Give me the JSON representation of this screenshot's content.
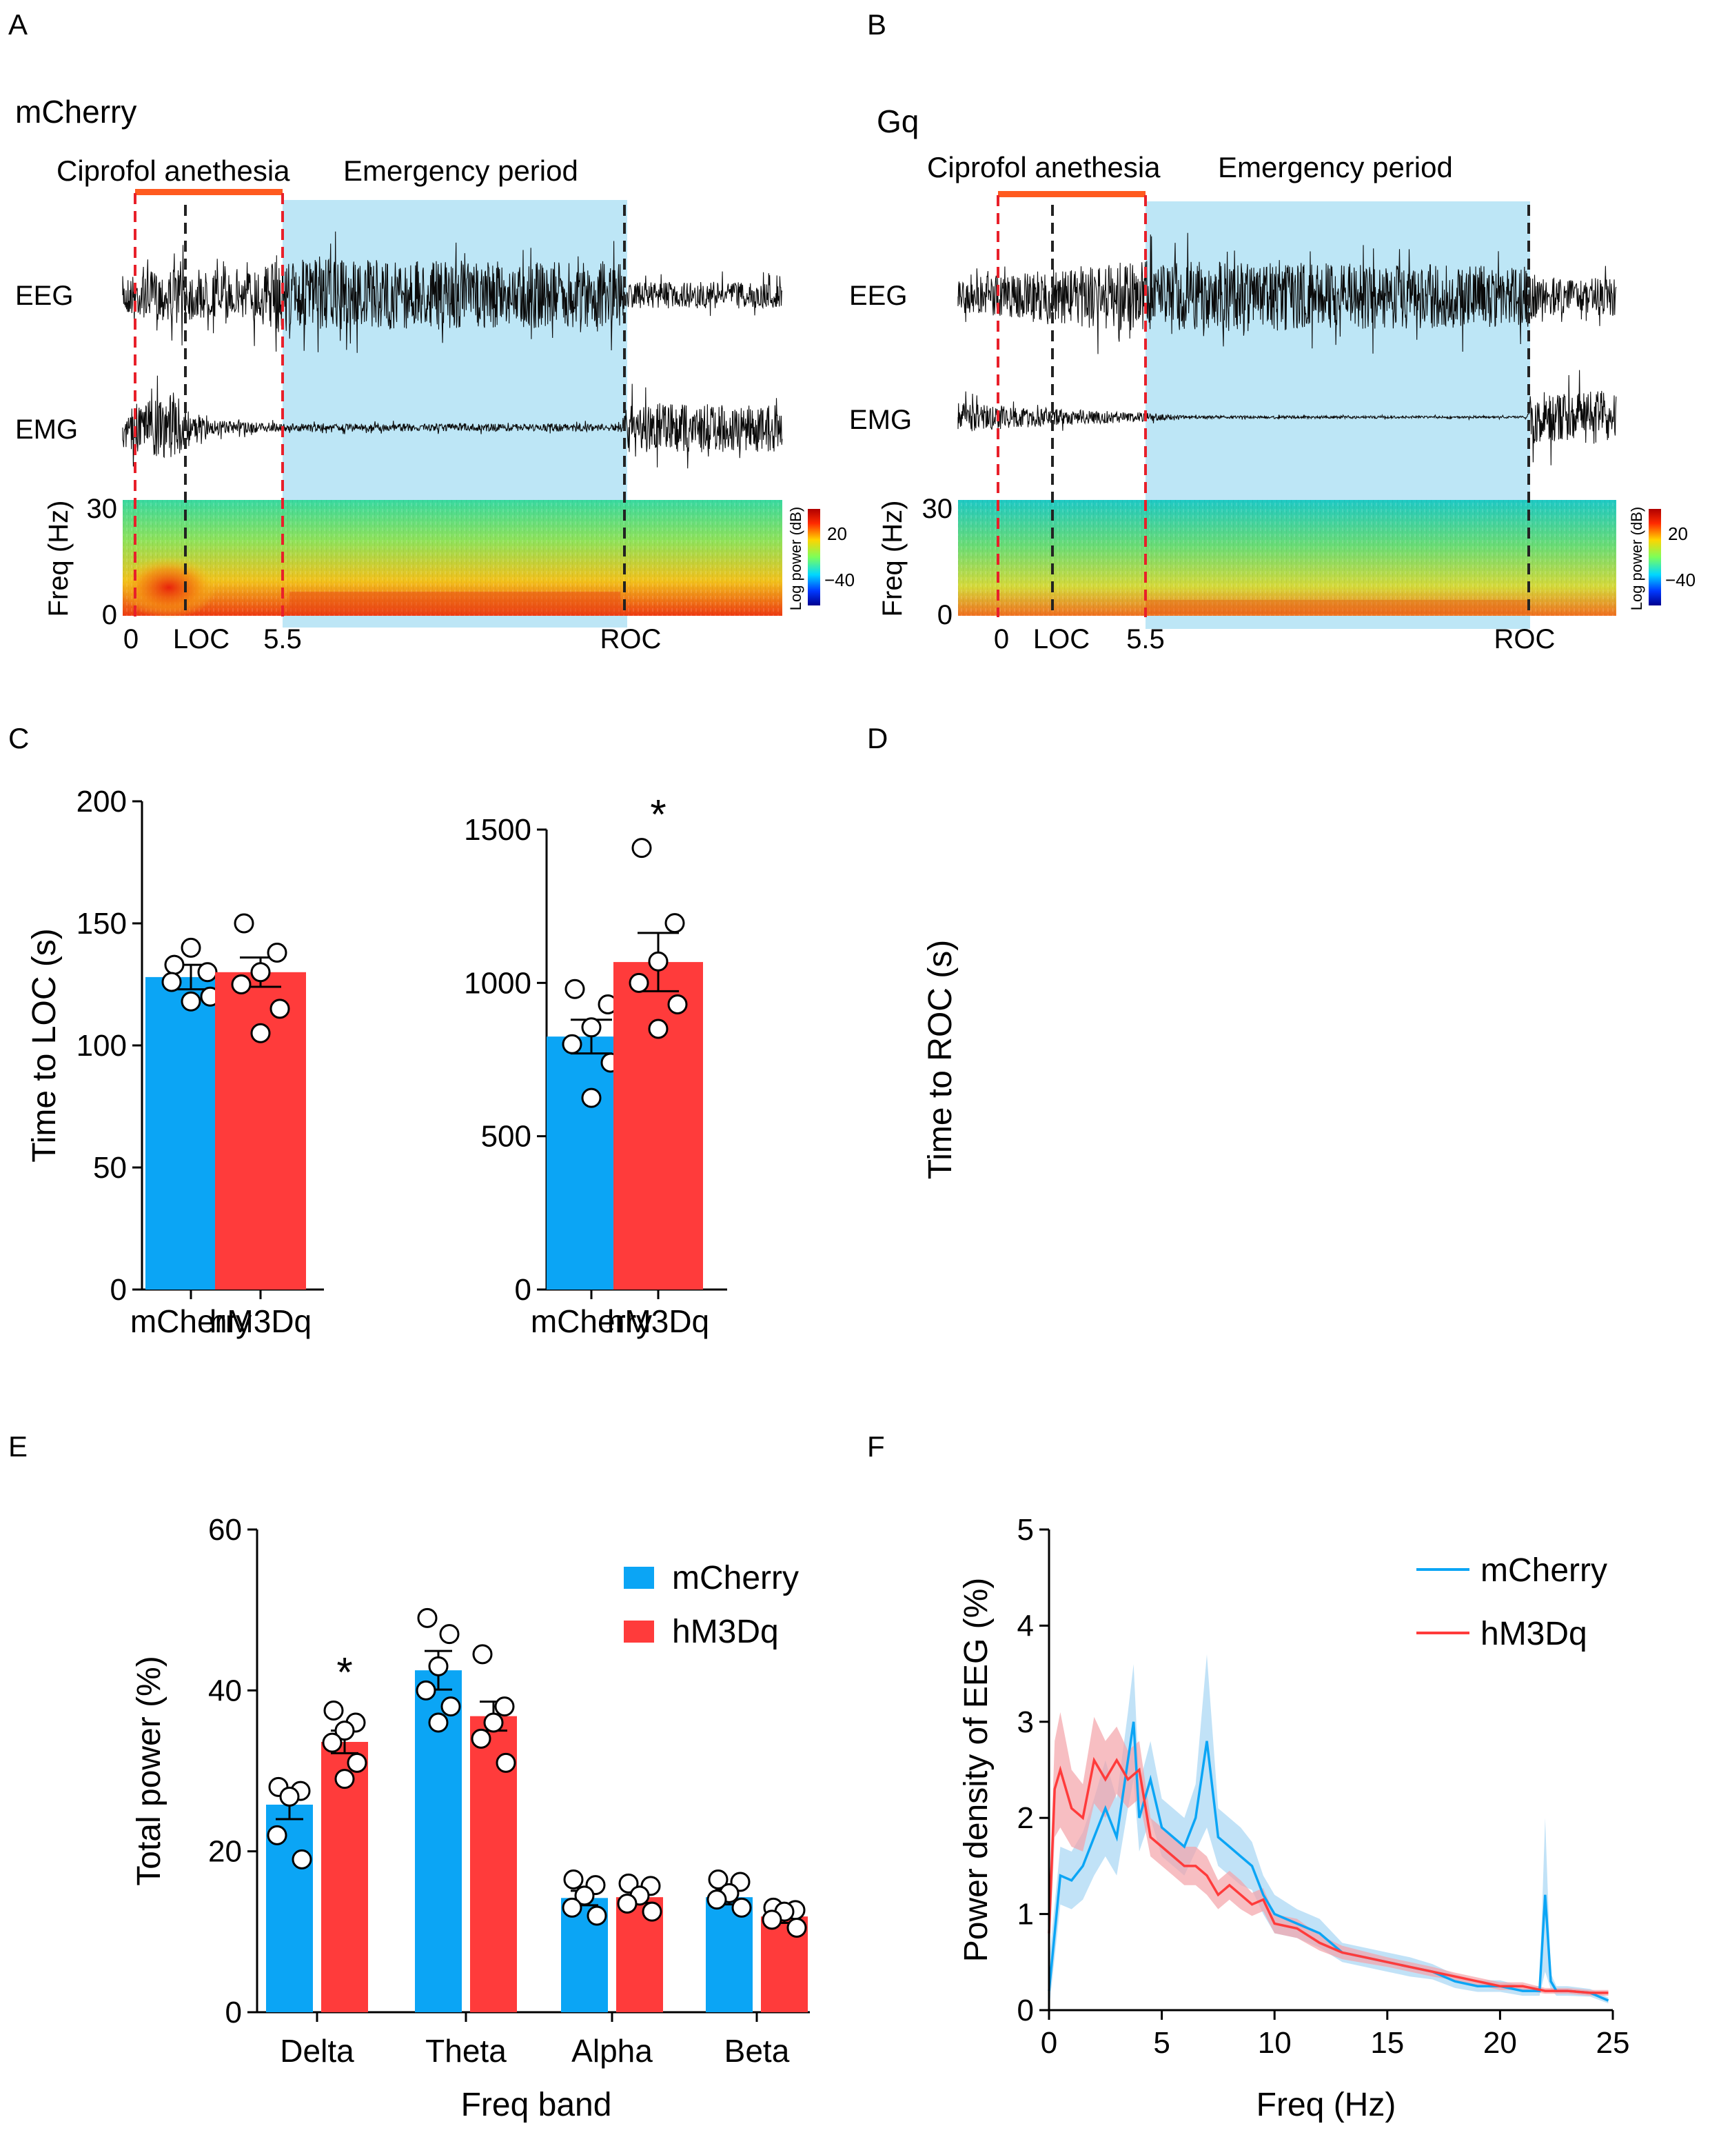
{
  "colors": {
    "mcherry": "#0BA5F5",
    "hm3dq": "#FF3B3B",
    "anesthesia_bar": "#FF5A1F",
    "emergence_shade": "#BDE6F6",
    "red_dashed": "#E8202A",
    "black_dashed": "#222222",
    "ci_mcherry": "#A6D6F4",
    "ci_hm3dq": "#F4A3A8"
  },
  "panel_a": {
    "letter": "A",
    "group": "mCherry",
    "anesthesia_label": "Ciprofol anethesia",
    "emergence_label": "Emergency period",
    "eeg_label": "EEG",
    "emg_label": "EMG",
    "freq_label": "Freq (Hz)",
    "freq_top": "30",
    "freq_bottom": "0",
    "colorbar_title": "Log power (dB)",
    "colorbar_high": "20",
    "colorbar_low": "−40",
    "event_labels": [
      "0",
      "LOC",
      "5.5",
      "ROC"
    ]
  },
  "panel_b": {
    "letter": "B",
    "group": "Gq",
    "anesthesia_label": "Ciprofol anethesia",
    "emergence_label": "Emergency period",
    "eeg_label": "EEG",
    "emg_label": "EMG",
    "freq_label": "Freq (Hz)",
    "freq_top": "30",
    "freq_bottom": "0",
    "colorbar_title": "Log power (dB)",
    "colorbar_high": "20",
    "colorbar_low": "−40",
    "event_labels": [
      "0",
      "LOC",
      "5.5",
      "ROC"
    ]
  },
  "chart_data": [
    {
      "id": "C",
      "letter": "C",
      "type": "bar",
      "ylabel": "Time to LOC (s)",
      "ylim": [
        0,
        200
      ],
      "yticks": [
        "0",
        "50",
        "100",
        "150",
        "200"
      ],
      "categories": [
        "mCherry",
        "hM3Dq"
      ],
      "values": [
        128,
        130
      ],
      "sem": [
        5,
        6
      ],
      "points": [
        [
          133,
          130,
          140,
          126,
          120,
          118
        ],
        [
          150,
          138,
          130,
          125,
          115,
          105
        ]
      ],
      "significance": [
        "",
        ""
      ]
    },
    {
      "id": "D",
      "letter": "D",
      "type": "bar",
      "ylabel": "Time to ROC (s)",
      "ylim": [
        0,
        1500
      ],
      "yticks": [
        "0",
        "500",
        "1000",
        "1500"
      ],
      "categories": [
        "mCherry",
        "hM3Dq"
      ],
      "values": [
        825,
        1068
      ],
      "sem": [
        55,
        95
      ],
      "points": [
        [
          980,
          930,
          855,
          800,
          740,
          625
        ],
        [
          1440,
          1195,
          1070,
          1000,
          930,
          850
        ]
      ],
      "significance": [
        "",
        "*"
      ]
    },
    {
      "id": "E",
      "letter": "E",
      "type": "bar",
      "ylabel": "Total power (%)",
      "xlabel": "Freq band",
      "ylim": [
        0,
        60
      ],
      "yticks": [
        "0",
        "20",
        "40",
        "60"
      ],
      "categories": [
        "Delta",
        "Theta",
        "Alpha",
        "Beta"
      ],
      "series": [
        {
          "name": "mCherry",
          "values": [
            25.8,
            42.5,
            14.2,
            14.3
          ],
          "sem": [
            1.8,
            2.4,
            0.9,
            0.9
          ],
          "points": [
            [
              28,
              27.5,
              26.8,
              22,
              19
            ],
            [
              49,
              47,
              43,
              40,
              38,
              36
            ],
            [
              16.5,
              15.8,
              14.5,
              13,
              12
            ],
            [
              16.5,
              16.2,
              14.8,
              14,
              13
            ]
          ]
        },
        {
          "name": "hM3Dq",
          "values": [
            33.6,
            36.8,
            14.3,
            11.9
          ],
          "sem": [
            1.4,
            1.8,
            0.7,
            0.8
          ],
          "points": [
            [
              37.5,
              36,
              35,
              33.5,
              31,
              29
            ],
            [
              44.5,
              38,
              36,
              34,
              31
            ],
            [
              16,
              15.7,
              14.5,
              13.5,
              12.5
            ],
            [
              13,
              12.7,
              12.5,
              11.5,
              10.5
            ]
          ]
        }
      ],
      "significance": [
        "*",
        "",
        "",
        ""
      ]
    },
    {
      "id": "F",
      "letter": "F",
      "type": "line",
      "ylabel": "Power density of EEG (%)",
      "xlabel": "Freq (Hz)",
      "xlim": [
        0,
        25
      ],
      "ylim": [
        0,
        5
      ],
      "xticks": [
        "0",
        "5",
        "10",
        "15",
        "20",
        "25"
      ],
      "yticks": [
        "0",
        "1",
        "2",
        "3",
        "4",
        "5"
      ],
      "series": [
        {
          "name": "mCherry",
          "x": [
            0,
            0.5,
            1,
            1.5,
            2,
            2.5,
            3,
            3.5,
            3.75,
            4,
            4.5,
            5,
            5.5,
            6,
            6.5,
            7,
            7.5,
            8,
            8.5,
            9,
            9.5,
            10,
            11,
            12,
            13,
            14,
            15,
            16,
            17,
            18,
            19,
            20,
            21,
            21.75,
            22,
            22.25,
            22.5,
            23,
            24,
            24.8
          ],
          "y": [
            0.2,
            1.4,
            1.35,
            1.5,
            1.8,
            2.1,
            1.8,
            2.6,
            3.0,
            2.0,
            2.4,
            1.9,
            1.8,
            1.7,
            2.0,
            2.8,
            1.8,
            1.7,
            1.6,
            1.5,
            1.2,
            1.0,
            0.9,
            0.8,
            0.6,
            0.55,
            0.5,
            0.45,
            0.4,
            0.3,
            0.25,
            0.25,
            0.2,
            0.2,
            1.2,
            0.3,
            0.2,
            0.2,
            0.18,
            0.1
          ],
          "ci": [
            0.3,
            0.3,
            0.3,
            0.35,
            0.4,
            0.5,
            0.4,
            0.5,
            0.6,
            0.35,
            0.4,
            0.3,
            0.3,
            0.3,
            0.35,
            0.9,
            0.3,
            0.3,
            0.3,
            0.25,
            0.2,
            0.2,
            0.15,
            0.15,
            0.1,
            0.1,
            0.1,
            0.1,
            0.08,
            0.07,
            0.06,
            0.06,
            0.05,
            0.05,
            0.8,
            0.08,
            0.05,
            0.05,
            0.04,
            0.03
          ]
        },
        {
          "name": "hM3Dq",
          "x": [
            0,
            0.25,
            0.5,
            1,
            1.5,
            2,
            2.5,
            3,
            3.5,
            4,
            4.5,
            5,
            5.5,
            6,
            6.5,
            7,
            7.5,
            8,
            8.5,
            9,
            9.5,
            10,
            11,
            12,
            13,
            14,
            15,
            16,
            17,
            18,
            19,
            20,
            21,
            22,
            23,
            24,
            24.8
          ],
          "y": [
            0.8,
            2.3,
            2.5,
            2.1,
            2.0,
            2.6,
            2.4,
            2.6,
            2.4,
            2.5,
            1.8,
            1.7,
            1.6,
            1.5,
            1.5,
            1.4,
            1.2,
            1.3,
            1.2,
            1.1,
            1.15,
            0.9,
            0.85,
            0.7,
            0.6,
            0.55,
            0.5,
            0.45,
            0.4,
            0.35,
            0.3,
            0.25,
            0.25,
            0.2,
            0.2,
            0.18,
            0.18
          ],
          "ci": [
            0.3,
            0.5,
            0.6,
            0.4,
            0.35,
            0.45,
            0.4,
            0.35,
            0.3,
            0.3,
            0.2,
            0.2,
            0.2,
            0.2,
            0.2,
            0.2,
            0.15,
            0.15,
            0.15,
            0.12,
            0.12,
            0.1,
            0.1,
            0.08,
            0.07,
            0.06,
            0.05,
            0.05,
            0.05,
            0.04,
            0.04,
            0.04,
            0.04,
            0.03,
            0.03,
            0.03,
            0.03
          ]
        }
      ]
    }
  ]
}
